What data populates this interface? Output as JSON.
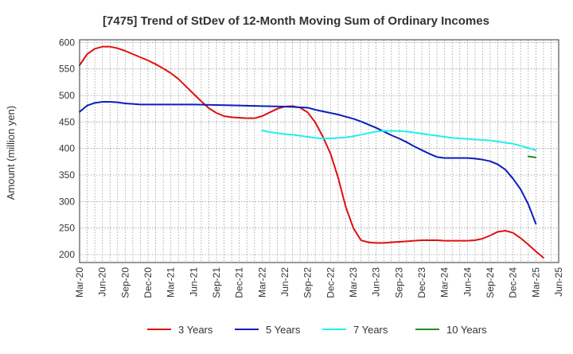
{
  "chart_data": {
    "type": "line",
    "title": "[7475]  Trend of StDev of 12-Month Moving Sum of Ordinary Incomes",
    "ylabel": "Amount (million yen)",
    "xlabel": "",
    "ylim": [
      185,
      605
    ],
    "y_ticks": [
      200,
      250,
      300,
      350,
      400,
      450,
      500,
      550,
      600
    ],
    "x_ticks": [
      "Mar-20",
      "Jun-20",
      "Sep-20",
      "Dec-20",
      "Mar-21",
      "Jun-21",
      "Sep-21",
      "Dec-21",
      "Mar-22",
      "Jun-22",
      "Sep-22",
      "Dec-22",
      "Mar-23",
      "Jun-23",
      "Sep-23",
      "Dec-23",
      "Mar-24",
      "Jun-24",
      "Sep-24",
      "Dec-24",
      "Mar-25",
      "Jun-25"
    ],
    "grid": true,
    "legend_position": "bottom",
    "series": [
      {
        "name": "3 Years",
        "color": "#dd1111",
        "points": [
          [
            "Mar-20",
            557
          ],
          [
            "Apr-20",
            578
          ],
          [
            "May-20",
            588
          ],
          [
            "Jun-20",
            592
          ],
          [
            "Jul-20",
            592
          ],
          [
            "Aug-20",
            589
          ],
          [
            "Sep-20",
            584
          ],
          [
            "Oct-20",
            578
          ],
          [
            "Nov-20",
            572
          ],
          [
            "Dec-20",
            566
          ],
          [
            "Jan-21",
            559
          ],
          [
            "Feb-21",
            551
          ],
          [
            "Mar-21",
            542
          ],
          [
            "Apr-21",
            531
          ],
          [
            "May-21",
            517
          ],
          [
            "Jun-21",
            503
          ],
          [
            "Jul-21",
            489
          ],
          [
            "Aug-21",
            476
          ],
          [
            "Sep-21",
            467
          ],
          [
            "Oct-21",
            461
          ],
          [
            "Nov-21",
            459
          ],
          [
            "Dec-21",
            458
          ],
          [
            "Jan-22",
            457
          ],
          [
            "Feb-22",
            457
          ],
          [
            "Mar-22",
            461
          ],
          [
            "Apr-22",
            468
          ],
          [
            "May-22",
            475
          ],
          [
            "Jun-22",
            479
          ],
          [
            "Jul-22",
            480
          ],
          [
            "Aug-22",
            477
          ],
          [
            "Sep-22",
            468
          ],
          [
            "Oct-22",
            449
          ],
          [
            "Nov-22",
            422
          ],
          [
            "Dec-22",
            390
          ],
          [
            "Jan-23",
            345
          ],
          [
            "Feb-23",
            290
          ],
          [
            "Mar-23",
            250
          ],
          [
            "Apr-23",
            227
          ],
          [
            "May-23",
            223
          ],
          [
            "Jun-23",
            222
          ],
          [
            "Jul-23",
            222
          ],
          [
            "Aug-23",
            223
          ],
          [
            "Sep-23",
            224
          ],
          [
            "Oct-23",
            225
          ],
          [
            "Nov-23",
            226
          ],
          [
            "Dec-23",
            227
          ],
          [
            "Jan-24",
            227
          ],
          [
            "Feb-24",
            227
          ],
          [
            "Mar-24",
            226
          ],
          [
            "Apr-24",
            226
          ],
          [
            "May-24",
            226
          ],
          [
            "Jun-24",
            226
          ],
          [
            "Jul-24",
            227
          ],
          [
            "Aug-24",
            230
          ],
          [
            "Sep-24",
            236
          ],
          [
            "Oct-24",
            243
          ],
          [
            "Nov-24",
            245
          ],
          [
            "Dec-24",
            241
          ],
          [
            "Jan-25",
            231
          ],
          [
            "Feb-25",
            219
          ],
          [
            "Mar-25",
            206
          ],
          [
            "Apr-25",
            194
          ]
        ]
      },
      {
        "name": "5 Years",
        "color": "#0a1fbf",
        "points": [
          [
            "Mar-20",
            469
          ],
          [
            "Apr-20",
            481
          ],
          [
            "May-20",
            486
          ],
          [
            "Jun-20",
            488
          ],
          [
            "Jul-20",
            488
          ],
          [
            "Aug-20",
            487
          ],
          [
            "Sep-20",
            485
          ],
          [
            "Oct-20",
            484
          ],
          [
            "Nov-20",
            483
          ],
          [
            "Dec-20",
            483
          ],
          [
            "Mar-21",
            483
          ],
          [
            "Jun-21",
            483
          ],
          [
            "Sep-21",
            482
          ],
          [
            "Dec-21",
            481
          ],
          [
            "Mar-22",
            480
          ],
          [
            "Jun-22",
            479
          ],
          [
            "Sep-22",
            477
          ],
          [
            "Oct-22",
            473
          ],
          [
            "Nov-22",
            470
          ],
          [
            "Dec-22",
            467
          ],
          [
            "Jan-23",
            464
          ],
          [
            "Feb-23",
            460
          ],
          [
            "Mar-23",
            456
          ],
          [
            "Apr-23",
            451
          ],
          [
            "May-23",
            445
          ],
          [
            "Jun-23",
            439
          ],
          [
            "Jul-23",
            432
          ],
          [
            "Aug-23",
            425
          ],
          [
            "Sep-23",
            419
          ],
          [
            "Oct-23",
            412
          ],
          [
            "Nov-23",
            404
          ],
          [
            "Dec-23",
            397
          ],
          [
            "Jan-24",
            390
          ],
          [
            "Feb-24",
            384
          ],
          [
            "Mar-24",
            382
          ],
          [
            "Apr-24",
            382
          ],
          [
            "May-24",
            382
          ],
          [
            "Jun-24",
            382
          ],
          [
            "Jul-24",
            381
          ],
          [
            "Aug-24",
            379
          ],
          [
            "Sep-24",
            376
          ],
          [
            "Oct-24",
            370
          ],
          [
            "Nov-24",
            360
          ],
          [
            "Dec-24",
            343
          ],
          [
            "Jan-25",
            323
          ],
          [
            "Feb-25",
            295
          ],
          [
            "Mar-25",
            258
          ]
        ]
      },
      {
        "name": "7 Years",
        "color": "#22eeee",
        "points": [
          [
            "Mar-22",
            434
          ],
          [
            "Apr-22",
            431
          ],
          [
            "May-22",
            429
          ],
          [
            "Jun-22",
            427
          ],
          [
            "Jul-22",
            426
          ],
          [
            "Aug-22",
            424
          ],
          [
            "Sep-22",
            422
          ],
          [
            "Oct-22",
            420
          ],
          [
            "Nov-22",
            419
          ],
          [
            "Dec-22",
            419
          ],
          [
            "Jan-23",
            420
          ],
          [
            "Feb-23",
            421
          ],
          [
            "Mar-23",
            423
          ],
          [
            "Apr-23",
            426
          ],
          [
            "May-23",
            429
          ],
          [
            "Jun-23",
            432
          ],
          [
            "Jul-23",
            433
          ],
          [
            "Aug-23",
            433
          ],
          [
            "Sep-23",
            433
          ],
          [
            "Oct-23",
            432
          ],
          [
            "Nov-23",
            430
          ],
          [
            "Dec-23",
            428
          ],
          [
            "Jan-24",
            426
          ],
          [
            "Feb-24",
            424
          ],
          [
            "Mar-24",
            422
          ],
          [
            "Apr-24",
            420
          ],
          [
            "May-24",
            419
          ],
          [
            "Jun-24",
            418
          ],
          [
            "Jul-24",
            417
          ],
          [
            "Aug-24",
            416
          ],
          [
            "Sep-24",
            415
          ],
          [
            "Oct-24",
            413
          ],
          [
            "Nov-24",
            411
          ],
          [
            "Dec-24",
            409
          ],
          [
            "Jan-25",
            405
          ],
          [
            "Feb-25",
            401
          ],
          [
            "Mar-25",
            397
          ]
        ]
      },
      {
        "name": "10 Years",
        "color": "#2a8a2a",
        "points": [
          [
            "Feb-25",
            385
          ],
          [
            "Mar-25",
            383
          ]
        ]
      }
    ]
  }
}
